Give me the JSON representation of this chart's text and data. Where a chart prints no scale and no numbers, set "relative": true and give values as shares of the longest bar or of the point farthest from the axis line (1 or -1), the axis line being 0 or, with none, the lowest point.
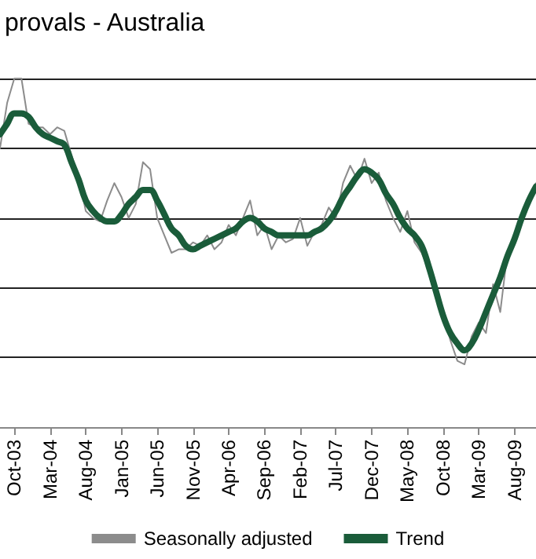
{
  "chart_data": {
    "type": "line",
    "title": "provals - Australia",
    "relative": true,
    "grid": "y",
    "legend": "bottom",
    "marker": "none",
    "line_style": "solid",
    "categories": [
      null,
      null,
      "Oct-03",
      null,
      null,
      null,
      null,
      "Mar-04",
      null,
      null,
      null,
      null,
      "Aug-04",
      null,
      null,
      null,
      null,
      "Jan-05",
      null,
      null,
      null,
      null,
      "Jun-05",
      null,
      null,
      null,
      null,
      "Nov-05",
      null,
      null,
      null,
      null,
      "Apr-06",
      null,
      null,
      null,
      null,
      "Sep-06",
      null,
      null,
      null,
      null,
      "Feb-07",
      null,
      null,
      null,
      null,
      "Jul-07",
      null,
      null,
      null,
      null,
      "Dec-07",
      null,
      null,
      null,
      null,
      "May-08",
      null,
      null,
      null,
      null,
      "Oct-08",
      null,
      null,
      null,
      null,
      "Mar-09",
      null,
      null,
      null,
      null,
      "Aug-09",
      null,
      null,
      null
    ],
    "series": [
      {
        "name": "Seasonally adjusted",
        "color": "#8c8c8c",
        "values": [
          0.8,
          0.93,
          1.0,
          1.0,
          0.87,
          0.86,
          0.86,
          0.84,
          0.86,
          0.85,
          0.78,
          0.72,
          0.62,
          0.6,
          0.59,
          0.65,
          0.7,
          0.66,
          0.6,
          0.64,
          0.76,
          0.74,
          0.6,
          0.55,
          0.5,
          0.51,
          0.51,
          0.53,
          0.52,
          0.55,
          0.51,
          0.53,
          0.58,
          0.55,
          0.6,
          0.65,
          0.55,
          0.58,
          0.51,
          0.55,
          0.53,
          0.54,
          0.6,
          0.52,
          0.56,
          0.58,
          0.63,
          0.6,
          0.7,
          0.75,
          0.71,
          0.77,
          0.7,
          0.73,
          0.65,
          0.6,
          0.56,
          0.62,
          0.53,
          0.5,
          0.45,
          0.38,
          0.33,
          0.25,
          0.19,
          0.18,
          0.26,
          0.3,
          0.27,
          0.41,
          0.33,
          0.5,
          0.55,
          0.6,
          0.66,
          0.7
        ]
      },
      {
        "name": "Trend",
        "color": "#1a5c3a",
        "values": [
          0.84,
          0.87,
          0.9,
          0.9,
          0.89,
          0.86,
          0.84,
          0.83,
          0.82,
          0.81,
          0.76,
          0.71,
          0.65,
          0.62,
          0.6,
          0.59,
          0.59,
          0.61,
          0.64,
          0.66,
          0.68,
          0.68,
          0.65,
          0.61,
          0.57,
          0.55,
          0.52,
          0.51,
          0.52,
          0.53,
          0.54,
          0.55,
          0.56,
          0.57,
          0.59,
          0.6,
          0.59,
          0.57,
          0.56,
          0.55,
          0.55,
          0.55,
          0.55,
          0.55,
          0.56,
          0.57,
          0.59,
          0.62,
          0.66,
          0.69,
          0.72,
          0.74,
          0.73,
          0.71,
          0.67,
          0.64,
          0.6,
          0.57,
          0.55,
          0.52,
          0.46,
          0.39,
          0.32,
          0.27,
          0.24,
          0.22,
          0.24,
          0.28,
          0.33,
          0.38,
          0.43,
          0.49,
          0.54,
          0.6,
          0.65,
          0.69
        ]
      }
    ]
  }
}
